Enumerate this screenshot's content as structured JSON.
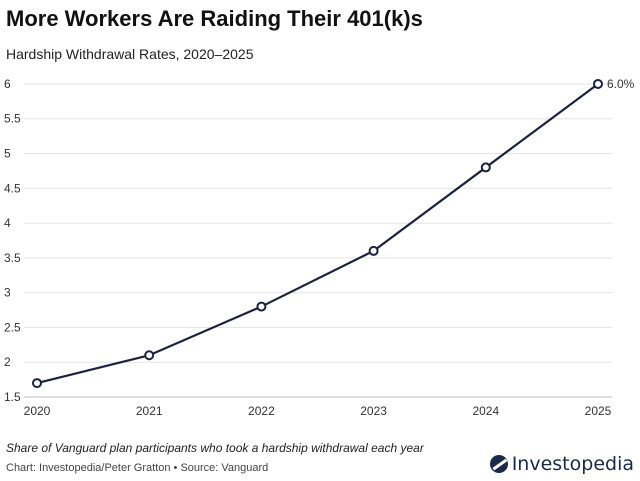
{
  "header": {
    "title": "More Workers Are Raiding Their 401(k)s",
    "subtitle": "Hardship Withdrawal Rates, 2020–2025"
  },
  "footer": {
    "note": "Share of Vanguard plan participants who took a hardship withdrawal each year",
    "source": "Chart: Investopedia/Peter Gratton • Source: Vanguard",
    "logo_text": "Investopedia"
  },
  "chart_data": {
    "type": "line",
    "title": "More Workers Are Raiding Their 401(k)s",
    "subtitle": "Hardship Withdrawal Rates, 2020–2025",
    "x": [
      2020,
      2021,
      2022,
      2023,
      2024,
      2025
    ],
    "series": [
      {
        "values": [
          1.7,
          2.1,
          2.8,
          3.6,
          4.8,
          6.0
        ]
      }
    ],
    "annotation": {
      "index": 5,
      "text": "6.0%"
    },
    "y_ticks": [
      1.5,
      2,
      2.5,
      3,
      3.5,
      4,
      4.5,
      5,
      5.5,
      6
    ],
    "ylim": [
      1.5,
      6.1
    ],
    "xlim": [
      2020,
      2025
    ],
    "grid": true,
    "legend": "none",
    "colors": {
      "line": "#1b2340",
      "grid": "#e3e3e3",
      "marker_fill": "#ffffff"
    }
  }
}
